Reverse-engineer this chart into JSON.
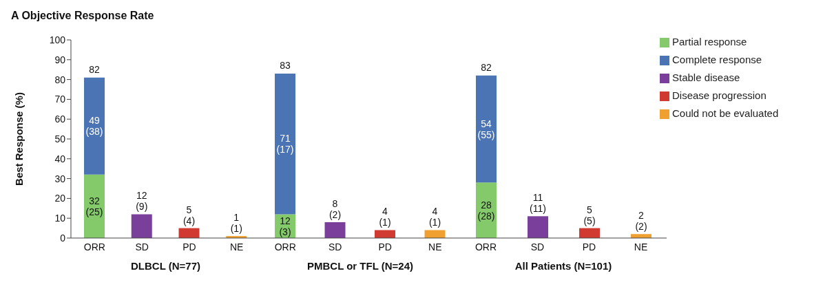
{
  "chart_data": [
    {
      "type": "bar",
      "title": "A  Objective Response Rate",
      "stacked": true,
      "categories": [
        "ORR",
        "SD",
        "PD",
        "NE"
      ],
      "xlabel": "DLBCL (N=77)",
      "ylabel": "Best Response (%)",
      "ylim": [
        0,
        100
      ],
      "yticks": [
        0,
        10,
        20,
        30,
        40,
        50,
        60,
        70,
        80,
        90,
        100
      ],
      "totals": [
        "82",
        null,
        null,
        null
      ],
      "series": [
        {
          "color": "#84c96a",
          "values": [
            32,
            null,
            null,
            null
          ],
          "value_labels": [
            "32 (25)",
            null,
            null,
            null
          ]
        },
        {
          "color": "#4a74b4",
          "values": [
            49,
            null,
            null,
            null
          ],
          "value_labels": [
            "49 (38)",
            null,
            null,
            null
          ]
        },
        {
          "color": "#7a3f9a",
          "values": [
            null,
            12,
            null,
            null
          ],
          "value_labels": [
            null,
            "12 (9)",
            null,
            null
          ]
        },
        {
          "color": "#d03a30",
          "values": [
            null,
            null,
            5,
            null
          ],
          "value_labels": [
            null,
            null,
            "5 (4)",
            null
          ]
        },
        {
          "color": "#f0a030",
          "values": [
            null,
            null,
            null,
            1
          ],
          "value_labels": [
            null,
            null,
            null,
            "1 (1)"
          ]
        }
      ]
    },
    {
      "type": "bar",
      "stacked": true,
      "categories": [
        "ORR",
        "SD",
        "PD",
        "NE"
      ],
      "xlabel": "PMBCL or TFL (N=24)",
      "ylim": [
        0,
        100
      ],
      "yticks": [
        0,
        10,
        20,
        30,
        40,
        50,
        60,
        70,
        80,
        90,
        100
      ],
      "tick_labels": "x",
      "totals": [
        "83",
        null,
        null,
        null
      ],
      "series": [
        {
          "color": "#84c96a",
          "values": [
            12,
            null,
            null,
            null
          ],
          "value_labels": [
            "12 (3)",
            null,
            null,
            null
          ]
        },
        {
          "color": "#4a74b4",
          "values": [
            71,
            null,
            null,
            null
          ],
          "value_labels": [
            "71 (17)",
            null,
            null,
            null
          ]
        },
        {
          "color": "#7a3f9a",
          "values": [
            null,
            8,
            null,
            null
          ],
          "value_labels": [
            null,
            "8 (2)",
            null,
            null
          ]
        },
        {
          "color": "#d03a30",
          "values": [
            null,
            null,
            4,
            null
          ],
          "value_labels": [
            null,
            null,
            "4 (1)",
            null
          ]
        },
        {
          "color": "#f0a030",
          "values": [
            null,
            null,
            null,
            4
          ],
          "value_labels": [
            null,
            null,
            null,
            "4 (1)"
          ]
        }
      ]
    },
    {
      "type": "bar",
      "stacked": true,
      "categories": [
        "ORR",
        "SD",
        "PD",
        "NE"
      ],
      "xlabel": "All Patients (N=101)",
      "ylim": [
        0,
        100
      ],
      "yticks": [
        0,
        10,
        20,
        30,
        40,
        50,
        60,
        70,
        80,
        90,
        100
      ],
      "tick_labels": "x",
      "totals": [
        "82",
        null,
        null,
        null
      ],
      "legend": "right",
      "series": [
        {
          "name": "Partial response",
          "color": "#84c96a",
          "values": [
            28,
            null,
            null,
            null
          ],
          "value_labels": [
            "28 (28)",
            null,
            null,
            null
          ]
        },
        {
          "name": "Complete response",
          "color": "#4a74b4",
          "values": [
            54,
            null,
            null,
            null
          ],
          "value_labels": [
            "54 (55)",
            null,
            null,
            null
          ]
        },
        {
          "name": "Stable disease",
          "color": "#7a3f9a",
          "values": [
            null,
            11,
            null,
            null
          ],
          "value_labels": [
            null,
            "11 (11)",
            null,
            null
          ]
        },
        {
          "name": "Disease progression",
          "color": "#d03a30",
          "values": [
            null,
            null,
            5,
            null
          ],
          "value_labels": [
            null,
            null,
            "5 (5)",
            null
          ]
        },
        {
          "name": "Could not be evaluated",
          "color": "#f0a030",
          "values": [
            null,
            null,
            null,
            2
          ],
          "value_labels": [
            null,
            null,
            null,
            "2 (2)"
          ]
        }
      ]
    }
  ]
}
